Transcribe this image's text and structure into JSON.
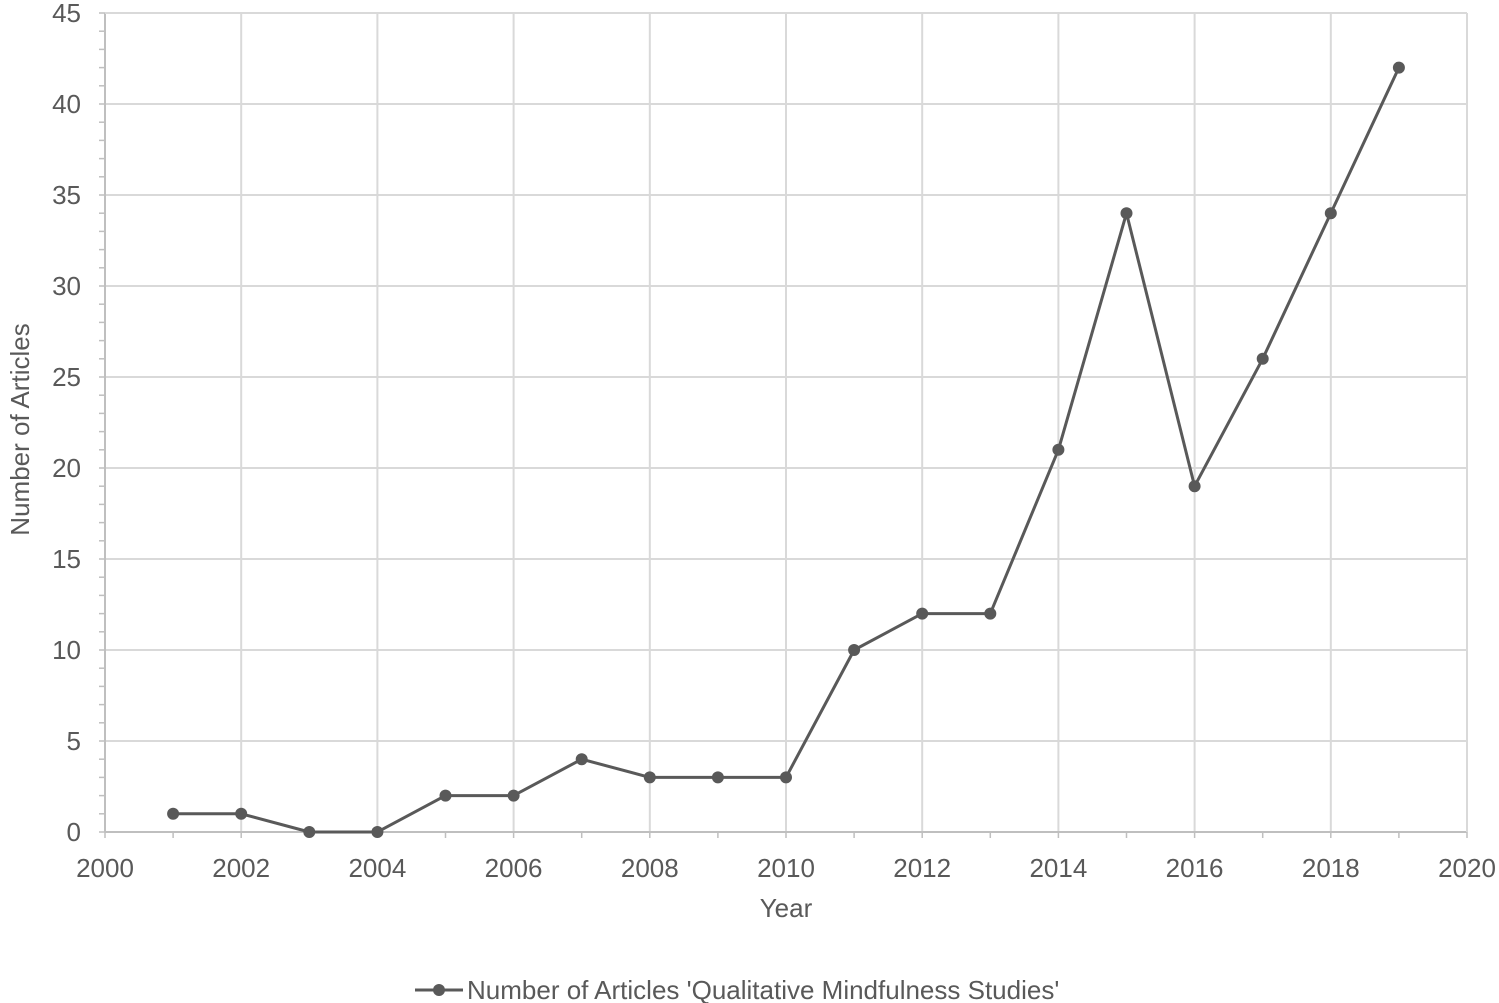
{
  "chart_data": {
    "type": "line",
    "title": "",
    "xlabel": "Year",
    "ylabel": "Number of Articles",
    "xlim": [
      2000,
      2020
    ],
    "ylim": [
      0,
      45
    ],
    "x_ticks": [
      2000,
      2002,
      2004,
      2006,
      2008,
      2010,
      2012,
      2014,
      2016,
      2018,
      2020
    ],
    "y_ticks": [
      0,
      5,
      10,
      15,
      20,
      25,
      30,
      35,
      40,
      45
    ],
    "grid": true,
    "legend_position": "bottom",
    "series": [
      {
        "name": "Number of Articles 'Qualitative Mindfulness Studies'",
        "color": "#595959",
        "x": [
          2001,
          2002,
          2003,
          2004,
          2005,
          2006,
          2007,
          2008,
          2009,
          2010,
          2011,
          2012,
          2013,
          2014,
          2015,
          2016,
          2017,
          2018,
          2019
        ],
        "y": [
          1,
          1,
          0,
          0,
          2,
          2,
          4,
          3,
          3,
          3,
          10,
          12,
          12,
          21,
          34,
          19,
          26,
          34,
          42
        ]
      }
    ]
  }
}
